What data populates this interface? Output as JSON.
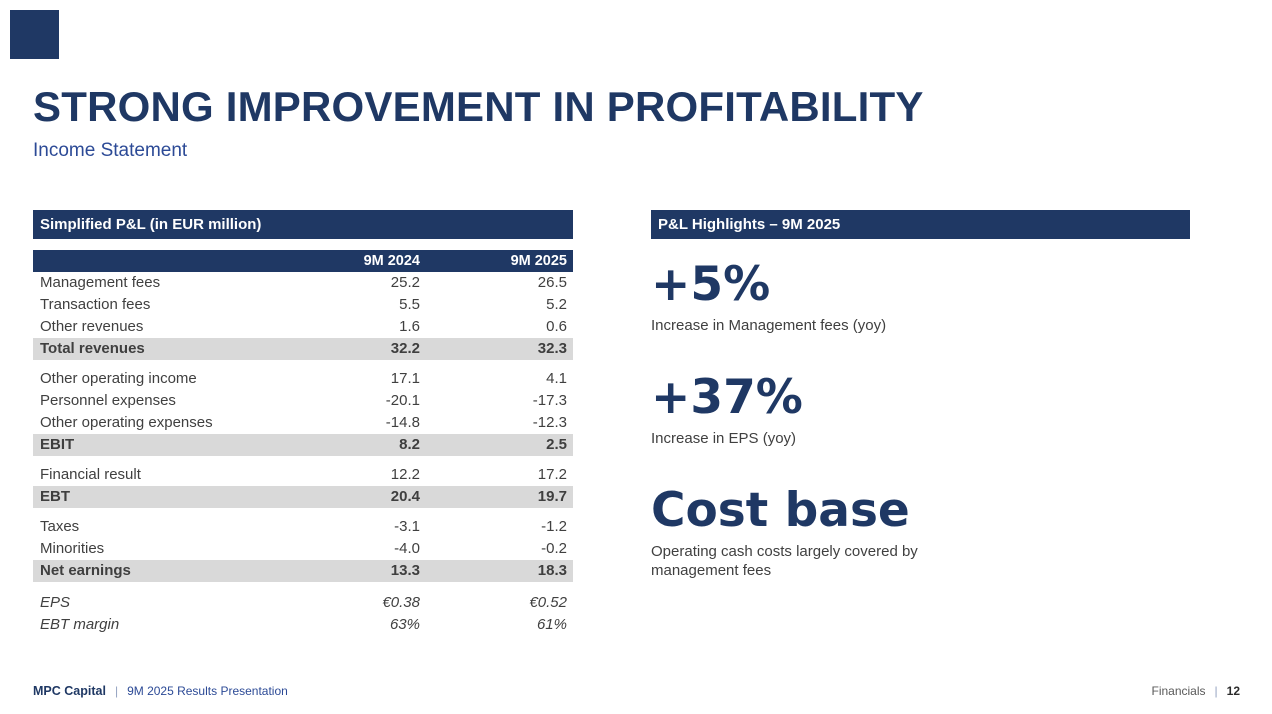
{
  "slide": {
    "title": "STRONG IMPROVEMENT IN PROFITABILITY",
    "subtitle": "Income Statement"
  },
  "colors": {
    "accent_navy": "#1f3864",
    "subtitle_blue": "#2c4a96",
    "total_row_band": "#d9d9d9",
    "body_text": "#404040"
  },
  "table": {
    "header": "Simplified P&L (in EUR million)",
    "columns": [
      "9M 2024",
      "9M 2025"
    ],
    "rows": [
      {
        "label": "Management fees",
        "c1": "25.2",
        "c2": "26.5"
      },
      {
        "label": "Transaction fees",
        "c1": "5.5",
        "c2": "5.2"
      },
      {
        "label": "Other revenues",
        "c1": "1.6",
        "c2": "0.6"
      },
      {
        "label": "Total revenues",
        "c1": "32.2",
        "c2": "32.3"
      },
      {
        "label": "Other operating income",
        "c1": "17.1",
        "c2": "4.1"
      },
      {
        "label": "Personnel expenses",
        "c1": "-20.1",
        "c2": "-17.3"
      },
      {
        "label": "Other operating expenses",
        "c1": "-14.8",
        "c2": "-12.3"
      },
      {
        "label": "EBIT",
        "c1": "8.2",
        "c2": "2.5"
      },
      {
        "label": "Financial result",
        "c1": "12.2",
        "c2": "17.2"
      },
      {
        "label": "EBT",
        "c1": "20.4",
        "c2": "19.7"
      },
      {
        "label": "Taxes",
        "c1": "-3.1",
        "c2": "-1.2"
      },
      {
        "label": "Minorities",
        "c1": "-4.0",
        "c2": "-0.2"
      },
      {
        "label": "Net earnings",
        "c1": "13.3",
        "c2": "18.3"
      },
      {
        "label": "EPS",
        "c1": "€0.38",
        "c2": "€0.52"
      },
      {
        "label": "EBT margin",
        "c1": "63%",
        "c2": "61%"
      }
    ]
  },
  "highlights": {
    "header": "P&L Highlights – 9M 2025",
    "items": [
      {
        "value": "+5%",
        "caption": "Increase in Management fees (yoy)"
      },
      {
        "value": "+37%",
        "caption": "Increase in EPS (yoy)"
      },
      {
        "value": "Cost base",
        "caption": "Operating cash costs largely covered by management fees"
      }
    ]
  },
  "footer": {
    "brand": "MPC Capital",
    "separator": "|",
    "deck_title": "9M 2025 Results Presentation",
    "section": "Financials",
    "page_number": "12"
  }
}
